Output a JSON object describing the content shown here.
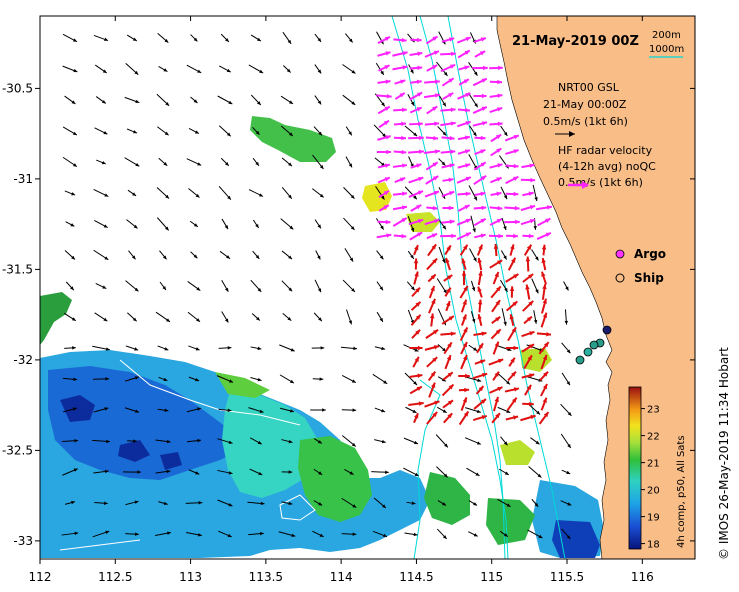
{
  "title": "21-May-2019 00Z",
  "depth_legend": {
    "c200": "200m",
    "c1000": "1000m",
    "c1000_color": "#00d8d8"
  },
  "nrt_legend": {
    "line1": "NRT00 GSL",
    "line2": "21-May 00:00Z",
    "line3": "0.5m/s (1kt 6h)"
  },
  "hf_legend": {
    "line1": "HF radar velocity",
    "line2": "(4-12h avg) noQC",
    "line3": "0.5m/s (1kt 6h)",
    "color": "#ff22ff"
  },
  "markers": {
    "argo": "Argo",
    "ship": "Ship",
    "argo_color": "#ff33ff"
  },
  "colorbar": {
    "label": "4h comp, p50, All Sats",
    "ticks": [
      "18",
      "19",
      "20",
      "21",
      "22",
      "23"
    ],
    "range": [
      17.8,
      23.8
    ]
  },
  "credit": "© IMOS 26-May-2019 11:34 Hobart",
  "x_axis": {
    "ticks": [
      "112",
      "112.5",
      "113",
      "113.5",
      "114",
      "114.5",
      "115",
      "115.5",
      "116"
    ],
    "values": [
      112,
      112.5,
      113,
      113.5,
      114,
      114.5,
      115,
      115.5,
      116
    ],
    "range": [
      112,
      116.35
    ]
  },
  "y_axis": {
    "ticks": [
      "-30.5",
      "-31",
      "-31.5",
      "-32",
      "-32.5",
      "-33"
    ],
    "values": [
      -30.5,
      -31,
      -31.5,
      -32,
      -32.5,
      -33
    ],
    "range": [
      -33.1,
      -30.1
    ]
  },
  "colors": {
    "land": "#f9bd88",
    "vector_model": "#000000",
    "vector_hf_red": "#e01010",
    "ship_marker": "#2a9d8a",
    "depth_200": "#00e0e0",
    "depth_1000": "#00d8d8"
  }
}
